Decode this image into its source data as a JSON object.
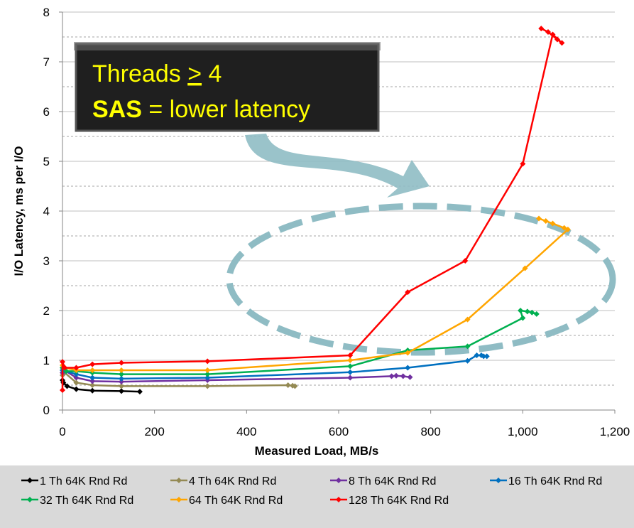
{
  "chart_data": {
    "type": "line",
    "xlabel": "Measured Load, MB/s",
    "ylabel": "I/O Latency, ms per I/O",
    "xlim": [
      0,
      1200
    ],
    "xticks": [
      0,
      200,
      400,
      600,
      800,
      {
        "value": 1000,
        "label": "1,000"
      },
      {
        "value": 1200,
        "label": "1,200"
      }
    ],
    "ylim": [
      0,
      8
    ],
    "yticks": [
      0,
      1,
      2,
      3,
      4,
      5,
      6,
      7,
      8
    ],
    "y_minor_ticks": [
      0.5,
      1.5,
      2.5,
      3.5,
      4.5,
      5.5,
      6.5,
      7.5
    ],
    "grid": true,
    "legend": "bottom",
    "annotation": {
      "line1": [
        "Threads",
        ">",
        "4"
      ],
      "line2": [
        "SAS",
        "= lower latency"
      ]
    },
    "series": [
      {
        "name": "1 Th 64K Rnd Rd",
        "color": "#000000",
        "x": [
          0,
          2,
          10,
          30,
          65,
          128,
          168
        ],
        "values": [
          0.6,
          0.55,
          0.48,
          0.42,
          0.39,
          0.38,
          0.37
        ]
      },
      {
        "name": "4 Th 64K Rnd Rd",
        "color": "#948a54",
        "x": [
          0,
          5,
          30,
          65,
          128,
          315,
          490,
          500,
          505
        ],
        "values": [
          0.7,
          0.75,
          0.55,
          0.5,
          0.48,
          0.48,
          0.5,
          0.49,
          0.48
        ]
      },
      {
        "name": "8 Th 64K Rnd Rd",
        "color": "#7030a0",
        "x": [
          0,
          8,
          30,
          65,
          128,
          315,
          625,
          715,
          725,
          740,
          755
        ],
        "values": [
          0.75,
          0.78,
          0.65,
          0.58,
          0.57,
          0.6,
          0.65,
          0.68,
          0.69,
          0.68,
          0.66
        ]
      },
      {
        "name": "16 Th 64K Rnd Rd",
        "color": "#0070c0",
        "x": [
          0,
          8,
          30,
          65,
          128,
          315,
          625,
          750,
          880,
          900,
          910,
          915,
          922
        ],
        "values": [
          0.8,
          0.78,
          0.72,
          0.65,
          0.63,
          0.65,
          0.76,
          0.85,
          0.99,
          1.1,
          1.1,
          1.08,
          1.08
        ]
      },
      {
        "name": "32 Th 64K Rnd Rd",
        "color": "#00b050",
        "x": [
          0,
          8,
          30,
          65,
          128,
          315,
          625,
          750,
          880,
          1000,
          995,
          1010,
          1020,
          1030
        ],
        "values": [
          0.85,
          0.78,
          0.78,
          0.75,
          0.72,
          0.72,
          0.88,
          1.2,
          1.28,
          1.85,
          2.0,
          1.98,
          1.96,
          1.93
        ]
      },
      {
        "name": "64 Th 64K Rnd Rd",
        "color": "#ffa500",
        "x": [
          0,
          5,
          30,
          65,
          128,
          315,
          625,
          750,
          880,
          1005,
          1098,
          1090,
          1065,
          1050,
          1035
        ],
        "values": [
          0.9,
          0.85,
          0.8,
          0.8,
          0.8,
          0.8,
          1.0,
          1.15,
          1.82,
          2.85,
          3.63,
          3.66,
          3.75,
          3.8,
          3.85
        ]
      },
      {
        "name": "128 Th 64K Rnd Rd",
        "color": "#ff0000",
        "x": [
          0,
          0,
          5,
          30,
          65,
          128,
          315,
          625,
          750,
          875,
          1000,
          1065,
          1085,
          1075,
          1055,
          1040
        ],
        "values": [
          0.4,
          0.97,
          0.85,
          0.85,
          0.92,
          0.95,
          0.98,
          1.1,
          2.37,
          3.0,
          4.95,
          7.55,
          7.38,
          7.45,
          7.6,
          7.67
        ]
      }
    ]
  }
}
